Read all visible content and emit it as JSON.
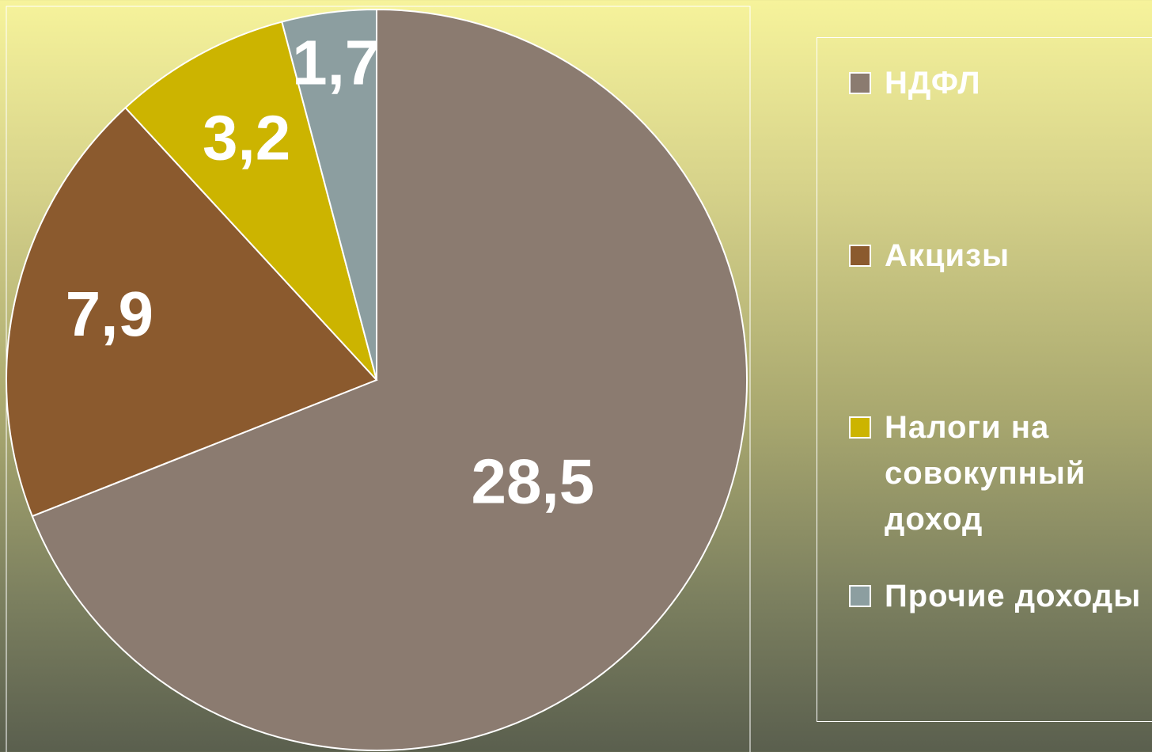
{
  "chart_data": {
    "type": "pie",
    "categories": [
      "НДФЛ",
      "Акцизы",
      "Налоги на совокупный доход",
      "Прочие доходы"
    ],
    "values": [
      28.5,
      7.9,
      3.2,
      1.7
    ],
    "value_labels": [
      "28,5",
      "7,9",
      "3,2",
      "1,7"
    ],
    "colors": [
      "#8b7b70",
      "#8b5a2e",
      "#ccb400",
      "#8c9ea0"
    ],
    "legend": "right"
  }
}
